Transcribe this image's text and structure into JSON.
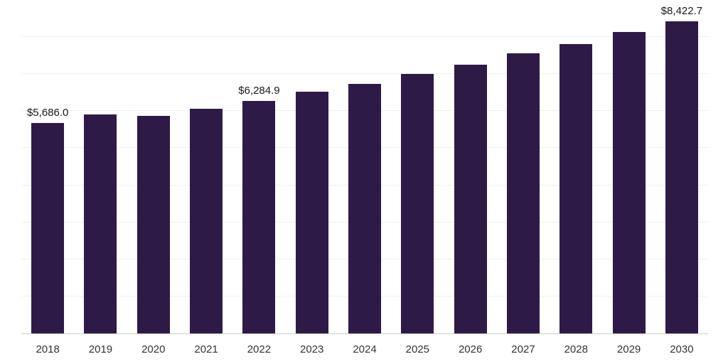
{
  "chart_data": {
    "type": "bar",
    "title": "",
    "xlabel": "",
    "ylabel": "",
    "categories": [
      "2018",
      "2019",
      "2020",
      "2021",
      "2022",
      "2023",
      "2024",
      "2025",
      "2026",
      "2027",
      "2028",
      "2029",
      "2030"
    ],
    "values": [
      5686.0,
      5920,
      5870,
      6070,
      6284.9,
      6520,
      6740,
      7000,
      7250,
      7560,
      7810,
      8140,
      8422.7
    ],
    "bar_labels": [
      "$5,686.0",
      null,
      null,
      null,
      "$6,284.9",
      null,
      null,
      null,
      null,
      null,
      null,
      null,
      "$8,422.7"
    ],
    "ylim": [
      0,
      9000
    ],
    "grid_step": 1000,
    "grid_on": true,
    "legend": null,
    "colors": {
      "bar": "#2e1a47",
      "gridline": "#f0f0f0",
      "axis_line": "#cccccc",
      "value_label": "#1a1a1a",
      "tick_label": "#333333",
      "background": "#ffffff"
    }
  }
}
